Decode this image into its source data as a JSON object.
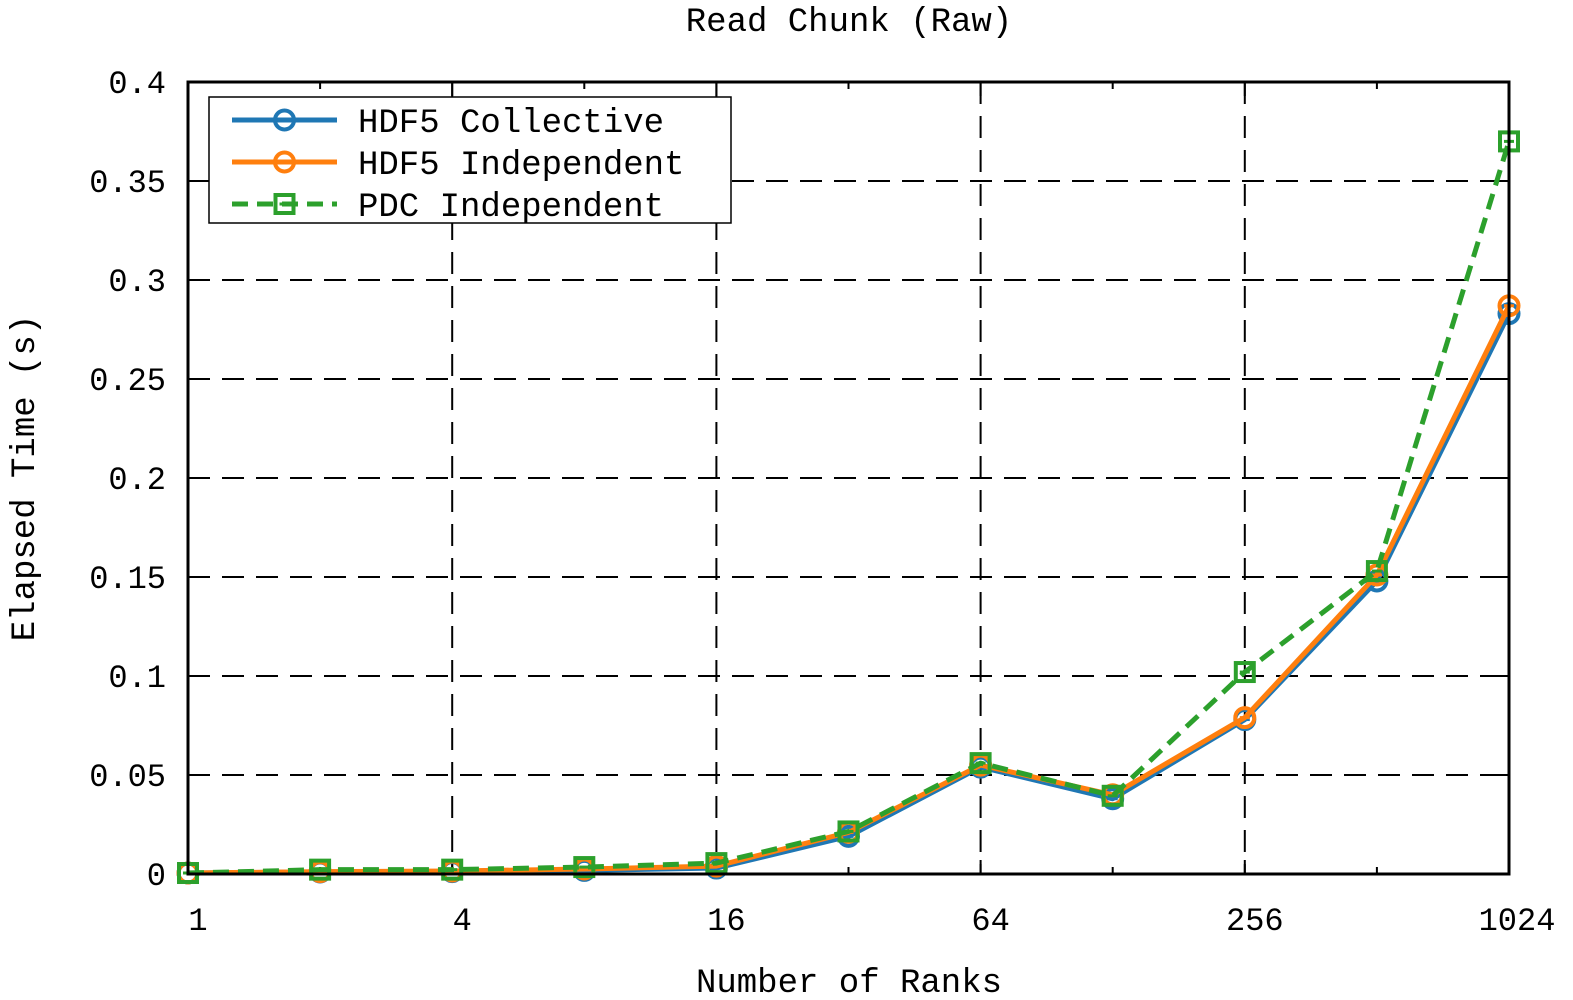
{
  "chart_data": {
    "type": "line",
    "title": "Read Chunk (Raw)",
    "xlabel": "Number of Ranks",
    "ylabel": "Elapsed Time (s)",
    "x_scale": "log2",
    "xlim": [
      1,
      1024
    ],
    "ylim": [
      0,
      0.4
    ],
    "x": [
      1,
      2,
      4,
      8,
      16,
      32,
      64,
      128,
      256,
      512,
      1024
    ],
    "xticks": [
      "1",
      "4",
      "16",
      "64",
      "256",
      "1024"
    ],
    "yticks": [
      "0",
      "0.05",
      "0.1",
      "0.15",
      "0.2",
      "0.25",
      "0.3",
      "0.35",
      "0.4"
    ],
    "grid": true,
    "legend_position": "top-left",
    "series": [
      {
        "name": "HDF5 Collective",
        "color": "#1f77b4",
        "marker": "circle",
        "dash": "solid",
        "values": [
          0.0005,
          0.001,
          0.0012,
          0.0018,
          0.003,
          0.019,
          0.054,
          0.038,
          0.078,
          0.148,
          0.283
        ]
      },
      {
        "name": "HDF5 Independent",
        "color": "#ff7f0e",
        "marker": "circle",
        "dash": "solid",
        "values": [
          0.0005,
          0.0012,
          0.0015,
          0.0025,
          0.004,
          0.021,
          0.055,
          0.04,
          0.079,
          0.151,
          0.287
        ]
      },
      {
        "name": "PDC Independent",
        "color": "#2ca02c",
        "marker": "square",
        "dash": "dashed",
        "values": [
          0.0005,
          0.0022,
          0.0022,
          0.0035,
          0.0055,
          0.0215,
          0.056,
          0.0395,
          0.102,
          0.153,
          0.37
        ]
      }
    ]
  }
}
